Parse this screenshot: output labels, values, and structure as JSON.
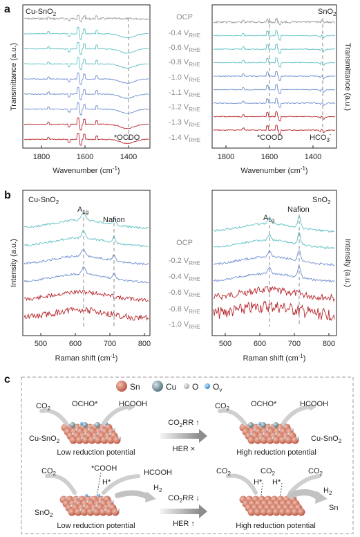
{
  "panels": {
    "a": "a",
    "b": "b",
    "c": "c"
  },
  "panel_a": {
    "left_label": "Cu-SnO",
    "left_label_sub": "2",
    "right_label": "SnO",
    "right_label_sub": "2",
    "ylabel_left": "Transmittance (a.u.)",
    "ylabel_right": "Transmittance (a.u.)",
    "xlabel": "Wavenumber (cm",
    "xlabel_sup": "-1",
    "xlabel_close": ")",
    "xticks": [
      "1800",
      "1600",
      "1400"
    ],
    "annot_ocdo": "*OCDO",
    "annot_cood": "*COOD",
    "annot_hco3": "HCO",
    "annot_hco3_sub": "3",
    "annot_hco3_sup": "-",
    "potentials": [
      "OCP",
      "-0.4 V",
      "-0.6 V",
      "-0.8 V",
      "-1.0 V",
      "-1.1 V",
      "-1.2 V",
      "-1.3 V",
      "-1.4 V"
    ],
    "potential_sub": "RHE"
  },
  "panel_b": {
    "left_label": "Cu-SnO",
    "left_label_sub": "2",
    "right_label": "SnO",
    "right_label_sub": "2",
    "ylabel_left": "Intensity (a.u.)",
    "ylabel_right": "Intensity (a.u.)",
    "xlabel": "Raman shift (cm",
    "xlabel_sup": "-1",
    "xlabel_close": ")",
    "xticks": [
      "500",
      "600",
      "700",
      "800"
    ],
    "a1g": "A",
    "a1g_sub": "1g",
    "nafion": "Nafion",
    "potentials": [
      "OCP",
      "-0.2 V",
      "-0.4 V",
      "-0.6 V",
      "-0.8 V",
      "-1.0 V"
    ],
    "potential_sub": "RHE"
  },
  "panel_c": {
    "legend": [
      "Sn",
      "Cu",
      "O",
      "O"
    ],
    "legend_ov_sub": "v",
    "top": {
      "co2": "CO",
      "co2_sub": "2",
      "ocho": "OCHO*",
      "hcooh": "HCOOH",
      "left_catalyst": "Cu-SnO",
      "left_catalyst_sub": "2",
      "right_catalyst": "Cu-SnO",
      "right_catalyst_sub": "2",
      "left_caption": "Low reduction potential",
      "right_caption": "High reduction potential",
      "arrow_line1": "CO",
      "arrow_line1_sub": "2",
      "arrow_line1_rest": "RR ↑",
      "arrow_line2": "HER ×"
    },
    "bottom": {
      "co2": "CO",
      "co2_sub": "2",
      "cooh": "*COOH",
      "h": "H*",
      "hcooh": "HCOOH",
      "h2": "H",
      "h2_sub": "2",
      "left_catalyst": "SnO",
      "left_catalyst_sub": "2",
      "right_sn": "Sn",
      "left_caption": "Low reduction potential",
      "right_caption": "High reduction potential",
      "arrow_line1": "CO",
      "arrow_line1_sub": "2",
      "arrow_line1_rest": "RR ↓",
      "arrow_line2": "HER ↑"
    }
  },
  "colors": {
    "gray": "#9a9a9a",
    "teal": "#5fc0c4",
    "blue": "#6f8fcf",
    "red": "#b6262c",
    "sn_ball": "#d9826f",
    "cu_ball": "#7fa3ad",
    "o_ball": "#c9c9c9",
    "ov_ball": "#5aa7e6"
  }
}
